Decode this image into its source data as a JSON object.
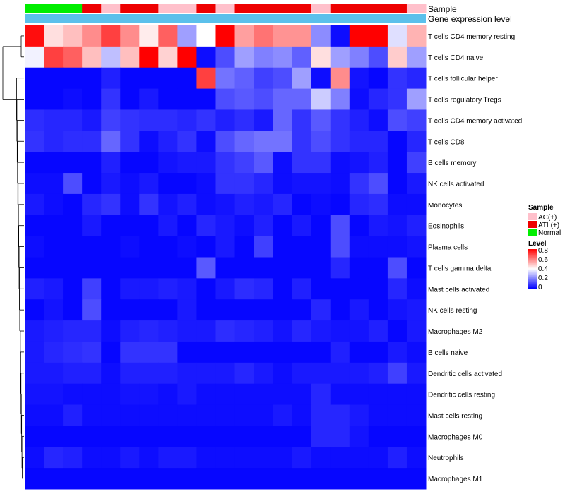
{
  "chart_data": {
    "type": "heatmap",
    "title": "",
    "annotation_rows": [
      "Sample",
      "Gene expression level"
    ],
    "sample_annotation": [
      "Normal",
      "Normal",
      "Normal",
      "ATL(+)",
      "AC(+)",
      "ATL(+)",
      "ATL(+)",
      "AC(+)",
      "AC(+)",
      "ATL(+)",
      "AC(+)",
      "ATL(+)",
      "ATL(+)",
      "ATL(+)",
      "ATL(+)",
      "AC(+)",
      "ATL(+)",
      "ATL(+)",
      "ATL(+)",
      "ATL(+)",
      "AC(+)"
    ],
    "gene_expression_level_color": "#5bc0eb",
    "rows": [
      "T cells CD4 memory resting",
      "T cells CD4 naive",
      "T cells follicular helper",
      "T cells regulatory  Tregs",
      "T cells CD4 memory activated",
      "T cells CD8",
      "B cells memory",
      "NK cells activated",
      "Monocytes",
      "Eosinophils",
      "Plasma cells",
      "T cells gamma delta",
      "Mast cells activated",
      "NK cells resting",
      "Macrophages M2",
      "B cells naive",
      "Dendritic cells activated",
      "Dendritic cells resting",
      "Mast cells resting",
      "Macrophages M0",
      "Neutrophils",
      "Macrophages M1"
    ],
    "values": [
      [
        0.78,
        0.45,
        0.5,
        0.58,
        0.7,
        0.58,
        0.43,
        0.65,
        0.25,
        0.4,
        0.8,
        0.55,
        0.62,
        0.57,
        0.57,
        0.22,
        0.02,
        0.8,
        0.8,
        0.35,
        0.52
      ],
      [
        0.38,
        0.7,
        0.65,
        0.5,
        0.3,
        0.5,
        0.8,
        0.47,
        0.8,
        0.02,
        0.12,
        0.25,
        0.2,
        0.22,
        0.15,
        0.45,
        0.25,
        0.2,
        0.12,
        0.48,
        0.25
      ],
      [
        0.01,
        0.01,
        0.01,
        0.01,
        0.05,
        0.01,
        0.01,
        0.01,
        0.01,
        0.7,
        0.18,
        0.15,
        0.1,
        0.12,
        0.25,
        0.02,
        0.58,
        0.03,
        0.01,
        0.08,
        0.06
      ],
      [
        0.01,
        0.01,
        0.02,
        0.01,
        0.08,
        0.01,
        0.04,
        0.01,
        0.01,
        0.01,
        0.12,
        0.14,
        0.12,
        0.16,
        0.16,
        0.32,
        0.2,
        0.02,
        0.06,
        0.08,
        0.25
      ],
      [
        0.07,
        0.06,
        0.06,
        0.04,
        0.1,
        0.08,
        0.07,
        0.07,
        0.06,
        0.08,
        0.05,
        0.07,
        0.04,
        0.16,
        0.08,
        0.14,
        0.08,
        0.05,
        0.02,
        0.12,
        0.1
      ],
      [
        0.08,
        0.06,
        0.07,
        0.07,
        0.16,
        0.08,
        0.02,
        0.05,
        0.08,
        0.02,
        0.12,
        0.16,
        0.18,
        0.18,
        0.08,
        0.12,
        0.08,
        0.06,
        0.06,
        0.01,
        0.06
      ],
      [
        0.01,
        0.01,
        0.01,
        0.01,
        0.05,
        0.01,
        0.01,
        0.03,
        0.04,
        0.04,
        0.08,
        0.1,
        0.14,
        0.02,
        0.08,
        0.08,
        0.02,
        0.03,
        0.05,
        0.01,
        0.1
      ],
      [
        0.02,
        0.02,
        0.12,
        0.01,
        0.04,
        0.02,
        0.04,
        0.01,
        0.01,
        0.02,
        0.08,
        0.08,
        0.06,
        0.02,
        0.03,
        0.03,
        0.02,
        0.08,
        0.12,
        0.01,
        0.04
      ],
      [
        0.04,
        0.02,
        0.01,
        0.06,
        0.08,
        0.02,
        0.08,
        0.03,
        0.05,
        0.02,
        0.03,
        0.05,
        0.04,
        0.06,
        0.01,
        0.02,
        0.01,
        0.06,
        0.07,
        0.02,
        0.02
      ],
      [
        0.01,
        0.01,
        0.01,
        0.04,
        0.01,
        0.01,
        0.01,
        0.04,
        0.01,
        0.06,
        0.04,
        0.02,
        0.05,
        0.01,
        0.04,
        0.01,
        0.12,
        0.01,
        0.04,
        0.03,
        0.05
      ],
      [
        0.02,
        0.01,
        0.01,
        0.01,
        0.01,
        0.02,
        0.01,
        0.01,
        0.02,
        0.01,
        0.04,
        0.01,
        0.1,
        0.01,
        0.01,
        0.01,
        0.12,
        0.02,
        0.02,
        0.02,
        0.03
      ],
      [
        0.01,
        0.01,
        0.01,
        0.01,
        0.01,
        0.01,
        0.01,
        0.01,
        0.01,
        0.14,
        0.01,
        0.01,
        0.01,
        0.01,
        0.01,
        0.01,
        0.06,
        0.01,
        0.01,
        0.12,
        0.01
      ],
      [
        0.05,
        0.04,
        0.01,
        0.1,
        0.01,
        0.04,
        0.04,
        0.05,
        0.04,
        0.01,
        0.04,
        0.07,
        0.06,
        0.01,
        0.05,
        0.01,
        0.01,
        0.01,
        0.01,
        0.06,
        0.02
      ],
      [
        0.01,
        0.03,
        0.01,
        0.12,
        0.01,
        0.01,
        0.01,
        0.01,
        0.04,
        0.01,
        0.01,
        0.01,
        0.01,
        0.01,
        0.01,
        0.06,
        0.01,
        0.04,
        0.01,
        0.03,
        0.04
      ],
      [
        0.04,
        0.05,
        0.06,
        0.06,
        0.02,
        0.05,
        0.06,
        0.05,
        0.04,
        0.04,
        0.07,
        0.06,
        0.05,
        0.03,
        0.06,
        0.04,
        0.03,
        0.03,
        0.05,
        0.01,
        0.04
      ],
      [
        0.04,
        0.06,
        0.07,
        0.08,
        0.01,
        0.08,
        0.08,
        0.08,
        0.01,
        0.01,
        0.01,
        0.01,
        0.01,
        0.01,
        0.01,
        0.01,
        0.05,
        0.01,
        0.01,
        0.04,
        0.02
      ],
      [
        0.04,
        0.04,
        0.05,
        0.05,
        0.02,
        0.05,
        0.05,
        0.05,
        0.04,
        0.04,
        0.04,
        0.06,
        0.04,
        0.02,
        0.04,
        0.04,
        0.04,
        0.04,
        0.05,
        0.1,
        0.04
      ],
      [
        0.03,
        0.03,
        0.02,
        0.02,
        0.02,
        0.03,
        0.03,
        0.02,
        0.04,
        0.02,
        0.02,
        0.02,
        0.02,
        0.02,
        0.02,
        0.06,
        0.02,
        0.02,
        0.02,
        0.02,
        0.02
      ],
      [
        0.02,
        0.02,
        0.05,
        0.02,
        0.02,
        0.02,
        0.02,
        0.02,
        0.02,
        0.02,
        0.02,
        0.02,
        0.02,
        0.04,
        0.02,
        0.06,
        0.06,
        0.04,
        0.02,
        0.02,
        0.02
      ],
      [
        0.01,
        0.01,
        0.01,
        0.01,
        0.01,
        0.01,
        0.01,
        0.01,
        0.01,
        0.01,
        0.01,
        0.01,
        0.01,
        0.01,
        0.01,
        0.06,
        0.06,
        0.03,
        0.01,
        0.01,
        0.01
      ],
      [
        0.02,
        0.06,
        0.05,
        0.02,
        0.02,
        0.04,
        0.02,
        0.04,
        0.04,
        0.02,
        0.02,
        0.02,
        0.02,
        0.02,
        0.04,
        0.02,
        0.02,
        0.02,
        0.02,
        0.05,
        0.02
      ],
      [
        0.01,
        0.01,
        0.01,
        0.01,
        0.01,
        0.01,
        0.01,
        0.01,
        0.01,
        0.01,
        0.01,
        0.01,
        0.01,
        0.01,
        0.01,
        0.01,
        0.01,
        0.01,
        0.01,
        0.01,
        0.01
      ]
    ],
    "color_scale": {
      "low": "#0000ff",
      "mid": "#ffffff",
      "high": "#ff0000",
      "min": 0,
      "mid_value": 0.4,
      "max": 0.8
    },
    "legend": {
      "placement": "right",
      "sample_title": "Sample",
      "sample_items": [
        {
          "label": "AC(+)",
          "color": "#ffc0cb"
        },
        {
          "label": "ATL(+)",
          "color": "#ee0000"
        },
        {
          "label": "Normal",
          "color": "#00ee00"
        }
      ],
      "level_title": "Level",
      "level_ticks": [
        "0.8",
        "0.6",
        "0.4",
        "0.2",
        "0"
      ]
    },
    "dendrogram": "rows"
  }
}
